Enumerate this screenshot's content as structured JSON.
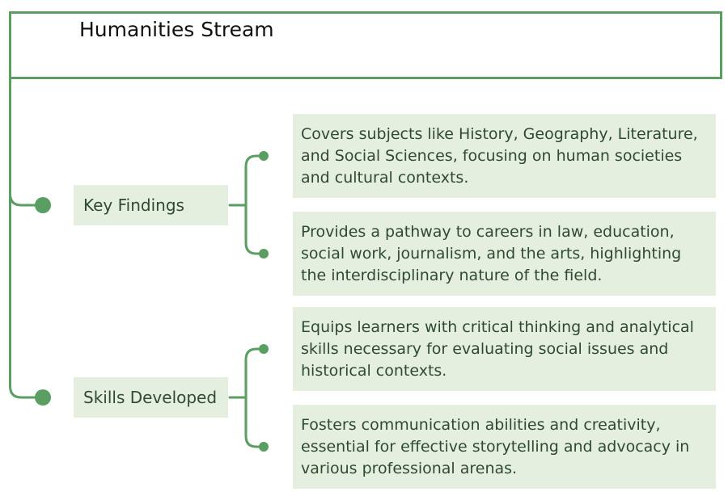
{
  "diagram": {
    "title": "Humanities Stream",
    "branches": [
      {
        "label": "Key Findings",
        "items": [
          "Covers subjects like History, Geography, Literature, and Social Sciences, focusing on human societies and cultural contexts.",
          "Provides a pathway to careers in law, education, social work, journalism, and the arts, highlighting the interdisciplinary nature of the field."
        ]
      },
      {
        "label": "Skills Developed",
        "items": [
          "Equips learners with critical thinking and analytical skills necessary for evaluating social issues and historical contexts.",
          "Fosters communication abilities and creativity, essential for effective storytelling and advocacy in various professional arenas."
        ]
      }
    ],
    "colors": {
      "line": "#5a9e61",
      "box_fill": "#e4efe0",
      "text": "#2f4a33"
    }
  }
}
